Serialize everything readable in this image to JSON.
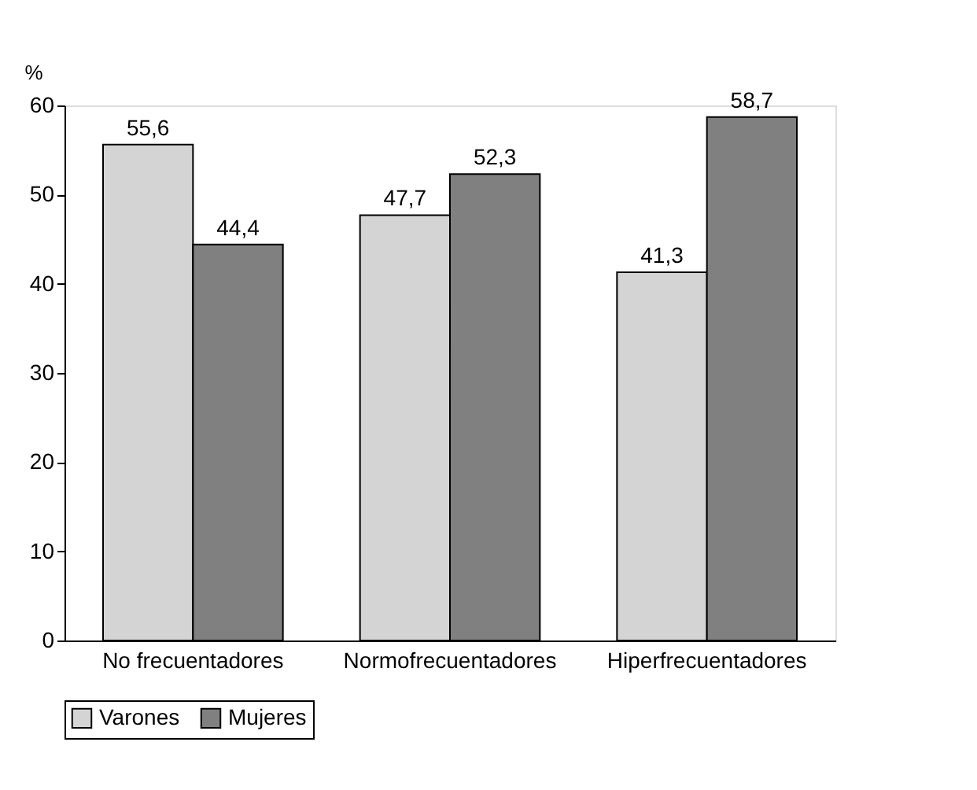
{
  "chart_data": {
    "type": "bar",
    "ylabel": "%",
    "categories": [
      "No frecuentadores",
      "Normofrecuentadores",
      "Hiperfrecuentadores"
    ],
    "series": [
      {
        "name": "Varones",
        "color": "#d4d4d4",
        "values": [
          55.6,
          47.7,
          41.3
        ],
        "value_labels": [
          "55,6",
          "47,7",
          "41,3"
        ]
      },
      {
        "name": "Mujeres",
        "color": "#808080",
        "values": [
          44.4,
          52.3,
          58.7
        ],
        "value_labels": [
          "44,4",
          "52,3",
          "58,7"
        ]
      }
    ],
    "ylim": [
      0,
      60
    ],
    "yticks": [
      0,
      10,
      20,
      30,
      40,
      50,
      60
    ],
    "grid": false,
    "legend": "bottom"
  }
}
